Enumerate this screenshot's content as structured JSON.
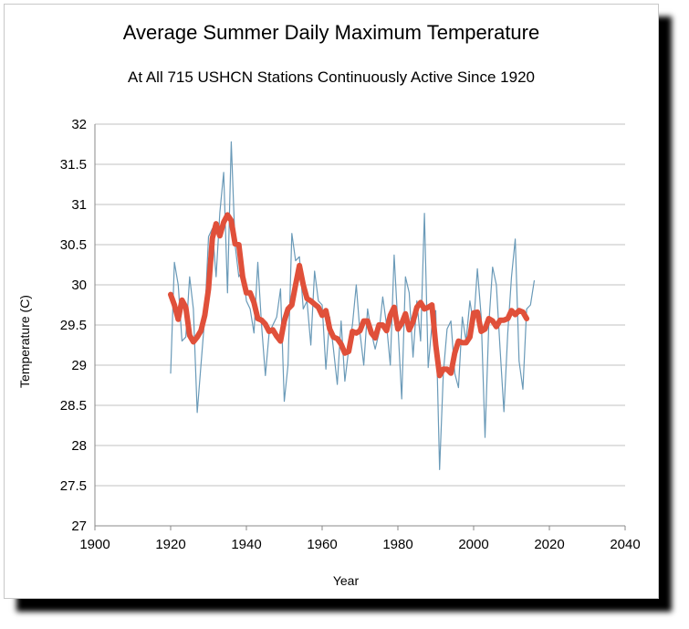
{
  "chart_data": {
    "type": "line",
    "title": "Average Summer Daily Maximum Temperature",
    "subtitle": "At All 715 USHCN Stations Continuously Active Since 1920",
    "xlabel": "Year",
    "ylabel": "Temperature (C)",
    "xlim": [
      1900,
      2040
    ],
    "ylim": [
      27,
      32
    ],
    "xticks": [
      "1900",
      "1920",
      "1940",
      "1960",
      "1980",
      "2000",
      "2020",
      "2040"
    ],
    "yticks": [
      "27",
      "27.5",
      "28",
      "28.5",
      "29",
      "29.5",
      "30",
      "30.5",
      "31",
      "31.5",
      "32"
    ],
    "grid": "horizontal",
    "legend": "none",
    "series": [
      {
        "color": "#6a9ab8",
        "x": [
          1920,
          1921,
          1922,
          1923,
          1924,
          1925,
          1926,
          1927,
          1928,
          1929,
          1930,
          1931,
          1932,
          1933,
          1934,
          1935,
          1936,
          1937,
          1938,
          1939,
          1940,
          1941,
          1942,
          1943,
          1944,
          1945,
          1946,
          1947,
          1948,
          1949,
          1950,
          1951,
          1952,
          1953,
          1954,
          1955,
          1956,
          1957,
          1958,
          1959,
          1960,
          1961,
          1962,
          1963,
          1964,
          1965,
          1966,
          1967,
          1968,
          1969,
          1970,
          1971,
          1972,
          1973,
          1974,
          1975,
          1976,
          1977,
          1978,
          1979,
          1980,
          1981,
          1982,
          1983,
          1984,
          1985,
          1986,
          1987,
          1988,
          1989,
          1990,
          1991,
          1992,
          1993,
          1994,
          1995,
          1996,
          1997,
          1998,
          1999,
          2000,
          2001,
          2002,
          2003,
          2004,
          2005,
          2006,
          2007,
          2008,
          2009,
          2010,
          2011,
          2012,
          2013,
          2014,
          2015,
          2016
        ],
        "y": [
          28.9,
          30.28,
          30.0,
          29.3,
          29.35,
          30.1,
          29.7,
          28.41,
          29.0,
          29.6,
          30.6,
          30.7,
          30.1,
          30.9,
          31.4,
          29.9,
          31.78,
          30.5,
          30.1,
          30.2,
          29.8,
          29.7,
          29.4,
          30.28,
          29.5,
          28.87,
          29.4,
          29.5,
          29.6,
          29.95,
          28.55,
          29.0,
          30.64,
          30.3,
          30.35,
          29.7,
          29.8,
          29.25,
          30.17,
          29.8,
          29.75,
          28.95,
          29.6,
          29.2,
          28.76,
          29.55,
          28.8,
          29.2,
          29.5,
          30.0,
          29.4,
          29.0,
          29.7,
          29.4,
          29.2,
          29.4,
          29.85,
          29.5,
          29.0,
          30.37,
          29.5,
          28.58,
          30.1,
          29.9,
          29.1,
          29.8,
          29.3,
          30.89,
          28.97,
          29.5,
          29.68,
          27.7,
          28.9,
          29.45,
          29.55,
          28.9,
          28.72,
          29.6,
          29.3,
          29.8,
          29.5,
          30.2,
          29.6,
          28.1,
          29.5,
          30.22,
          30.0,
          29.2,
          28.42,
          29.4,
          30.1,
          30.57,
          29.05,
          28.7,
          29.7,
          29.75,
          30.05
        ]
      },
      {
        "color": "#e0503a",
        "x": [
          1920,
          1921,
          1922,
          1923,
          1924,
          1925,
          1926,
          1927,
          1928,
          1929,
          1930,
          1931,
          1932,
          1933,
          1934,
          1935,
          1936,
          1937,
          1938,
          1939,
          1940,
          1941,
          1942,
          1943,
          1944,
          1945,
          1946,
          1947,
          1948,
          1949,
          1950,
          1951,
          1952,
          1953,
          1954,
          1955,
          1956,
          1957,
          1958,
          1959,
          1960,
          1961,
          1962,
          1963,
          1964,
          1965,
          1966,
          1967,
          1968,
          1969,
          1970,
          1971,
          1972,
          1973,
          1974,
          1975,
          1976,
          1977,
          1978,
          1979,
          1980,
          1981,
          1982,
          1983,
          1984,
          1985,
          1986,
          1987,
          1988,
          1989,
          1990,
          1991,
          1992,
          1993,
          1994,
          1995,
          1996,
          1997,
          1998,
          1999,
          2000,
          2001,
          2002,
          2003,
          2004,
          2005,
          2006,
          2007,
          2008,
          2009,
          2010,
          2011,
          2012,
          2013,
          2014
        ],
        "y": [
          29.88,
          29.75,
          29.57,
          29.81,
          29.72,
          29.37,
          29.29,
          29.35,
          29.43,
          29.62,
          29.95,
          30.58,
          30.76,
          30.61,
          30.78,
          30.87,
          30.8,
          30.51,
          30.5,
          30.1,
          29.9,
          29.9,
          29.78,
          29.58,
          29.56,
          29.51,
          29.42,
          29.44,
          29.36,
          29.3,
          29.55,
          29.7,
          29.75,
          30.0,
          30.24,
          30.0,
          29.83,
          29.8,
          29.76,
          29.72,
          29.62,
          29.68,
          29.45,
          29.35,
          29.33,
          29.26,
          29.15,
          29.17,
          29.42,
          29.4,
          29.43,
          29.55,
          29.55,
          29.4,
          29.34,
          29.5,
          29.5,
          29.43,
          29.62,
          29.72,
          29.45,
          29.52,
          29.64,
          29.44,
          29.54,
          29.72,
          29.78,
          29.7,
          29.72,
          29.75,
          29.25,
          28.87,
          28.95,
          28.95,
          28.9,
          29.15,
          29.3,
          29.28,
          29.28,
          29.35,
          29.65,
          29.66,
          29.42,
          29.45,
          29.58,
          29.55,
          29.48,
          29.56,
          29.56,
          29.58,
          29.68,
          29.63,
          29.68,
          29.66,
          29.58
        ]
      }
    ]
  }
}
